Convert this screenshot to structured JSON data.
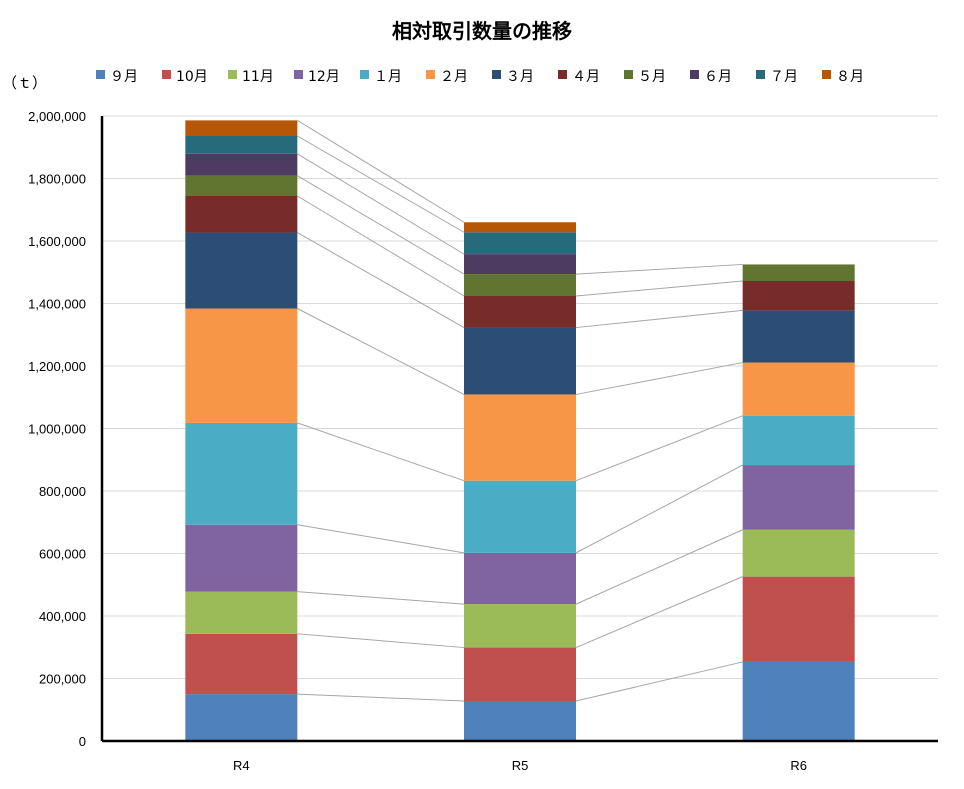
{
  "chart_data": {
    "type": "bar",
    "stacked": true,
    "title": "相対取引数量の推移",
    "ylabel": "（ｔ）",
    "xlabel": "",
    "categories": [
      "R4",
      "R5",
      "R6"
    ],
    "ylim": [
      0,
      2000000
    ],
    "yticks": [
      0,
      200000,
      400000,
      600000,
      800000,
      1000000,
      1200000,
      1400000,
      1600000,
      1800000,
      2000000
    ],
    "ytick_labels": [
      "0",
      "200,000",
      "400,000",
      "600,000",
      "800,000",
      "1,000,000",
      "1,200,000",
      "1,400,000",
      "1,600,000",
      "1,800,000",
      "2,000,000"
    ],
    "grid": true,
    "legend_position": "top",
    "series_lines": true,
    "series": [
      {
        "name": "９月",
        "color": "#4f81bd",
        "values": [
          150000,
          128000,
          253000
        ]
      },
      {
        "name": "10月",
        "color": "#c0504d",
        "values": [
          193000,
          171000,
          273000
        ]
      },
      {
        "name": "11月",
        "color": "#9bbb59",
        "values": [
          135000,
          139000,
          150000
        ]
      },
      {
        "name": "12月",
        "color": "#8064a2",
        "values": [
          214000,
          164000,
          207000
        ]
      },
      {
        "name": "１月",
        "color": "#4bacc6",
        "values": [
          326000,
          231000,
          158000
        ]
      },
      {
        "name": "２月",
        "color": "#f79646",
        "values": [
          366000,
          276000,
          170000
        ]
      },
      {
        "name": "３月",
        "color": "#2c4d75",
        "values": [
          243000,
          214000,
          167000
        ]
      },
      {
        "name": "４月",
        "color": "#772c2a",
        "values": [
          117000,
          101000,
          94000
        ]
      },
      {
        "name": "５月",
        "color": "#5f7530",
        "values": [
          65000,
          70000,
          53000
        ]
      },
      {
        "name": "６月",
        "color": "#4d3b62",
        "values": [
          70000,
          64000,
          0
        ]
      },
      {
        "name": "７月",
        "color": "#276a7c",
        "values": [
          57000,
          70000,
          0
        ]
      },
      {
        "name": "８月",
        "color": "#b65708",
        "values": [
          50000,
          32000,
          0
        ]
      }
    ]
  }
}
